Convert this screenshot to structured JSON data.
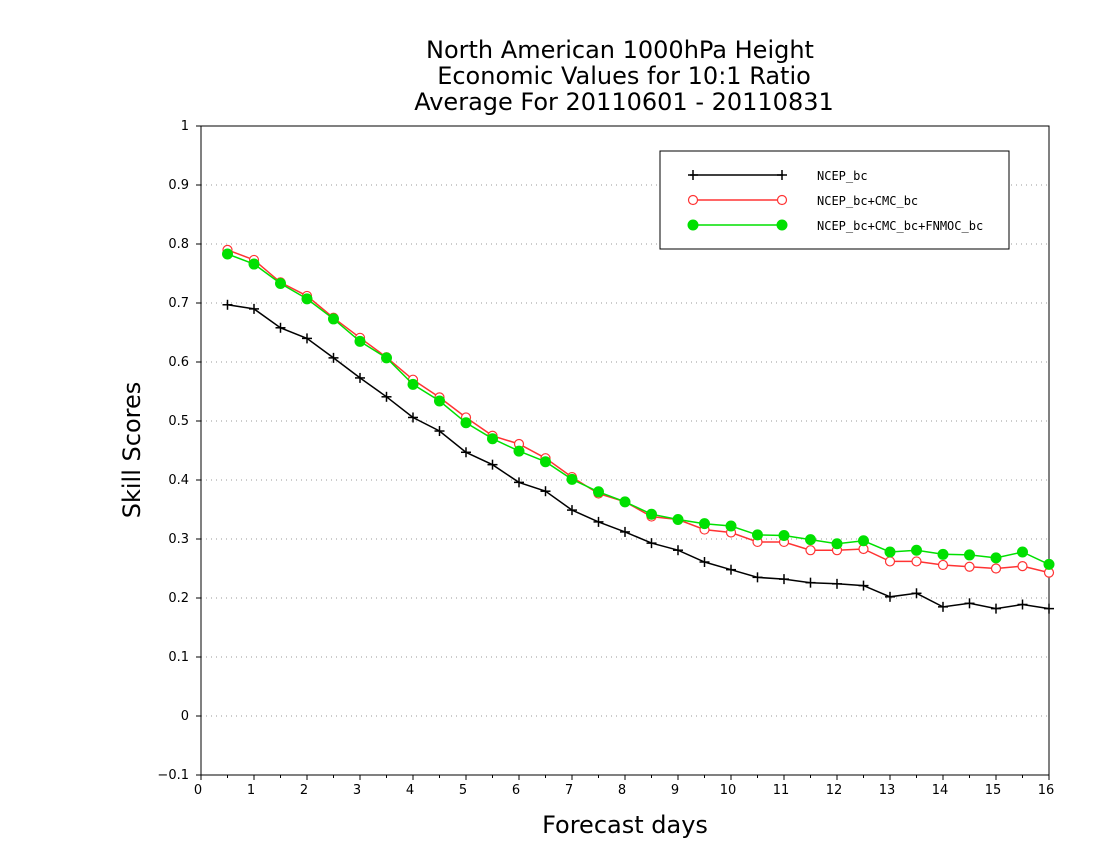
{
  "chart_data": {
    "type": "line",
    "title": [
      "North American 1000hPa Height",
      "Economic Values for 10:1 Ratio",
      "Average For 20110601 - 20110831"
    ],
    "xlabel": "Forecast days",
    "ylabel": "Skill Scores",
    "xlim": [
      0,
      16
    ],
    "ylim": [
      -0.1,
      1
    ],
    "x_ticks": [
      "0",
      "1",
      "2",
      "3",
      "4",
      "5",
      "6",
      "7",
      "8",
      "9",
      "10",
      "11",
      "12",
      "13",
      "14",
      "15",
      "16"
    ],
    "y_ticks": [
      "−0.1",
      "0",
      "0.1",
      "0.2",
      "0.3",
      "0.4",
      "0.5",
      "0.6",
      "0.7",
      "0.8",
      "0.9",
      "1"
    ],
    "grid": "horizontal dotted",
    "legend_position": "top-right",
    "x": [
      0.5,
      1,
      1.5,
      2,
      2.5,
      3,
      3.5,
      4,
      4.5,
      5,
      5.5,
      6,
      6.5,
      7,
      7.5,
      8,
      8.5,
      9,
      9.5,
      10,
      10.5,
      11,
      11.5,
      12,
      12.5,
      13,
      13.5,
      14,
      14.5,
      15,
      15.5,
      16
    ],
    "series": [
      {
        "name": "NCEP_bc",
        "color": "#000000",
        "marker": "plus",
        "values": [
          0.697,
          0.69,
          0.658,
          0.64,
          0.607,
          0.573,
          0.541,
          0.506,
          0.483,
          0.447,
          0.426,
          0.396,
          0.381,
          0.349,
          0.329,
          0.312,
          0.293,
          0.281,
          0.261,
          0.248,
          0.235,
          0.232,
          0.226,
          0.224,
          0.221,
          0.202,
          0.208,
          0.185,
          0.191,
          0.182,
          0.189,
          0.182
        ]
      },
      {
        "name": "NCEP_bc+CMC_bc",
        "color": "#ff3333",
        "marker": "open-circle",
        "values": [
          0.79,
          0.773,
          0.735,
          0.712,
          0.675,
          0.641,
          0.608,
          0.57,
          0.54,
          0.506,
          0.475,
          0.461,
          0.437,
          0.405,
          0.377,
          0.363,
          0.338,
          0.333,
          0.316,
          0.311,
          0.295,
          0.295,
          0.281,
          0.281,
          0.283,
          0.262,
          0.262,
          0.256,
          0.253,
          0.25,
          0.254,
          0.243
        ]
      },
      {
        "name": "NCEP_bc+CMC_bc+FNMOC_bc",
        "color": "#00e000",
        "marker": "filled-circle",
        "values": [
          0.783,
          0.766,
          0.733,
          0.707,
          0.673,
          0.635,
          0.607,
          0.562,
          0.534,
          0.497,
          0.47,
          0.449,
          0.431,
          0.401,
          0.38,
          0.363,
          0.342,
          0.333,
          0.326,
          0.322,
          0.307,
          0.306,
          0.299,
          0.292,
          0.297,
          0.278,
          0.281,
          0.274,
          0.273,
          0.268,
          0.278,
          0.257
        ]
      }
    ]
  }
}
